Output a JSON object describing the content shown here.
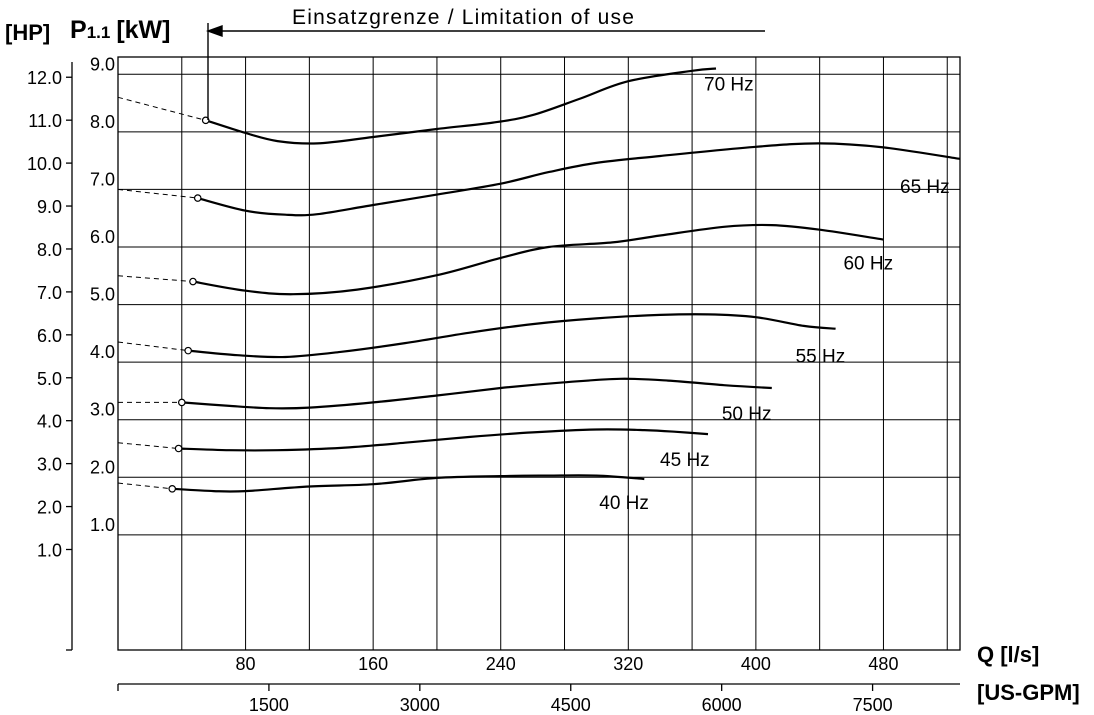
{
  "title": "Einsatzgrenze / Limitation of use",
  "y_unit_hp": "[HP]",
  "y_symbol": "P",
  "y_subscript": "1.1",
  "y_unit_kw": "[kW]",
  "x_label_primary": "Q [l/s]",
  "x_label_secondary": "[US-GPM]",
  "chart_data": {
    "type": "line",
    "title": "Einsatzgrenze / Limitation of use",
    "xlabel": "Q [l/s]",
    "xlabel_secondary": "[US-GPM]",
    "ylabel": "P1.1 [kW]",
    "ylabel_secondary": "[HP]",
    "xlim": [
      0,
      528
    ],
    "ylim": [
      -1,
      9.3
    ],
    "grid": true,
    "x_ticks": [
      80,
      160,
      240,
      320,
      400,
      480
    ],
    "x_ticks_secondary": [
      "1500",
      "3000",
      "4500",
      "6000",
      "7500"
    ],
    "y_ticks_kw": [
      "1.0",
      "2.0",
      "3.0",
      "4.0",
      "5.0",
      "6.0",
      "7.0",
      "8.0",
      "9.0"
    ],
    "y_ticks_hp": [
      "1.0",
      "2.0",
      "3.0",
      "4.0",
      "5.0",
      "6.0",
      "7.0",
      "8.0",
      "9.0",
      "10.0",
      "11.0",
      "12.0"
    ],
    "hp_per_kw": 1.341,
    "series": [
      {
        "name": "70 Hz",
        "limit_point": [
          55,
          8.2
        ],
        "extrapolation_start": [
          0,
          8.6
        ],
        "points": [
          [
            55,
            8.2
          ],
          [
            80,
            7.98
          ],
          [
            100,
            7.84
          ],
          [
            125,
            7.8
          ],
          [
            160,
            7.91
          ],
          [
            200,
            8.05
          ],
          [
            235,
            8.16
          ],
          [
            260,
            8.29
          ],
          [
            290,
            8.58
          ],
          [
            320,
            8.88
          ],
          [
            360,
            9.06
          ],
          [
            375,
            9.1
          ]
        ]
      },
      {
        "name": "65 Hz",
        "limit_point": [
          50,
          6.85
        ],
        "extrapolation_start": [
          0,
          7.0
        ],
        "points": [
          [
            50,
            6.85
          ],
          [
            80,
            6.63
          ],
          [
            105,
            6.56
          ],
          [
            125,
            6.57
          ],
          [
            160,
            6.73
          ],
          [
            200,
            6.91
          ],
          [
            240,
            7.1
          ],
          [
            270,
            7.3
          ],
          [
            300,
            7.46
          ],
          [
            340,
            7.58
          ],
          [
            400,
            7.74
          ],
          [
            440,
            7.8
          ],
          [
            480,
            7.73
          ],
          [
            528,
            7.53
          ]
        ]
      },
      {
        "name": "60 Hz",
        "limit_point": [
          47,
          5.4
        ],
        "extrapolation_start": [
          0,
          5.5
        ],
        "points": [
          [
            47,
            5.4
          ],
          [
            80,
            5.24
          ],
          [
            110,
            5.18
          ],
          [
            150,
            5.26
          ],
          [
            200,
            5.51
          ],
          [
            240,
            5.81
          ],
          [
            270,
            6.0
          ],
          [
            310,
            6.08
          ],
          [
            340,
            6.2
          ],
          [
            380,
            6.35
          ],
          [
            410,
            6.38
          ],
          [
            440,
            6.3
          ],
          [
            480,
            6.13
          ]
        ]
      },
      {
        "name": "55 Hz",
        "limit_point": [
          44,
          4.2
        ],
        "extrapolation_start": [
          0,
          4.35
        ],
        "points": [
          [
            44,
            4.2
          ],
          [
            75,
            4.12
          ],
          [
            105,
            4.09
          ],
          [
            140,
            4.18
          ],
          [
            180,
            4.33
          ],
          [
            220,
            4.51
          ],
          [
            260,
            4.66
          ],
          [
            300,
            4.76
          ],
          [
            340,
            4.82
          ],
          [
            370,
            4.83
          ],
          [
            400,
            4.78
          ],
          [
            430,
            4.63
          ],
          [
            450,
            4.58
          ]
        ]
      },
      {
        "name": "50 Hz",
        "limit_point": [
          40,
          3.3
        ],
        "extrapolation_start": [
          0,
          3.3
        ],
        "points": [
          [
            40,
            3.3
          ],
          [
            70,
            3.24
          ],
          [
            95,
            3.2
          ],
          [
            120,
            3.21
          ],
          [
            160,
            3.3
          ],
          [
            200,
            3.42
          ],
          [
            240,
            3.55
          ],
          [
            280,
            3.65
          ],
          [
            315,
            3.71
          ],
          [
            345,
            3.68
          ],
          [
            380,
            3.6
          ],
          [
            410,
            3.55
          ]
        ]
      },
      {
        "name": "45 Hz",
        "limit_point": [
          38,
          2.5
        ],
        "extrapolation_start": [
          0,
          2.6
        ],
        "points": [
          [
            38,
            2.5
          ],
          [
            70,
            2.47
          ],
          [
            100,
            2.47
          ],
          [
            140,
            2.51
          ],
          [
            180,
            2.6
          ],
          [
            220,
            2.7
          ],
          [
            260,
            2.78
          ],
          [
            300,
            2.83
          ],
          [
            330,
            2.82
          ],
          [
            350,
            2.79
          ],
          [
            370,
            2.75
          ]
        ]
      },
      {
        "name": "40 Hz",
        "limit_point": [
          34,
          1.8
        ],
        "extrapolation_start": [
          0,
          1.9
        ],
        "points": [
          [
            34,
            1.8
          ],
          [
            60,
            1.76
          ],
          [
            80,
            1.76
          ],
          [
            120,
            1.84
          ],
          [
            160,
            1.88
          ],
          [
            200,
            1.99
          ],
          [
            240,
            2.02
          ],
          [
            270,
            2.03
          ],
          [
            300,
            2.03
          ],
          [
            330,
            1.97
          ]
        ]
      }
    ]
  }
}
